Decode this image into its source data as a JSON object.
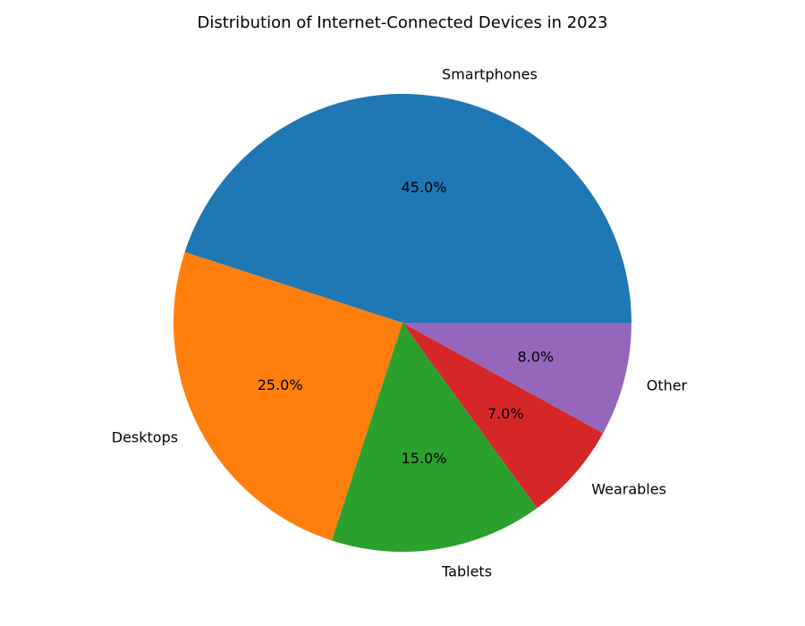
{
  "chart_data": {
    "type": "pie",
    "title": "Distribution of Internet-Connected Devices in 2023",
    "start_angle_deg": 0,
    "direction": "counterclockwise",
    "slices": [
      {
        "label": "Smartphones",
        "value": 45.0,
        "pct_label": "45.0%",
        "color": "#1f77b4"
      },
      {
        "label": "Desktops",
        "value": 25.0,
        "pct_label": "25.0%",
        "color": "#ff7f0e"
      },
      {
        "label": "Tablets",
        "value": 15.0,
        "pct_label": "15.0%",
        "color": "#2ca02c"
      },
      {
        "label": "Wearables",
        "value": 7.0,
        "pct_label": "7.0%",
        "color": "#d62728"
      },
      {
        "label": "Other",
        "value": 8.0,
        "pct_label": "8.0%",
        "color": "#9467bd"
      }
    ]
  }
}
